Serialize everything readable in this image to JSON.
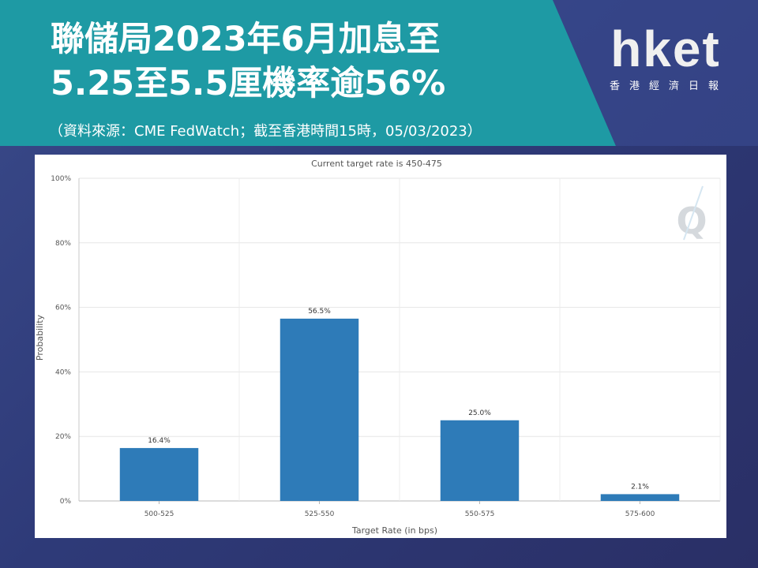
{
  "header": {
    "title_line1": "聯儲局2023年6月加息至",
    "title_line2": "5.25至5.5厘機率逾56%",
    "subtitle": "（資料來源：CME FedWatch；截至香港時間15時，05/03/2023）"
  },
  "logo": {
    "main": "hket",
    "sub": "香港經濟日報",
    "color": "#f0f0f0"
  },
  "colors": {
    "banner": "#1e9aa4",
    "bar": "#2e7bb8",
    "background": "#2e3a78"
  },
  "chart_data": {
    "type": "bar",
    "title": "Current target rate is 450-475",
    "xlabel": "Target Rate (in bps)",
    "ylabel": "Probability",
    "categories": [
      "500-525",
      "525-550",
      "550-575",
      "575-600"
    ],
    "values": [
      16.4,
      56.5,
      25.0,
      2.1
    ],
    "data_labels": [
      "16.4%",
      "56.5%",
      "25.0%",
      "2.1%"
    ],
    "yticks": [
      "0%",
      "20%",
      "40%",
      "60%",
      "80%",
      "100%"
    ],
    "ylim": [
      0,
      100
    ],
    "grid": true,
    "legend": "none"
  }
}
